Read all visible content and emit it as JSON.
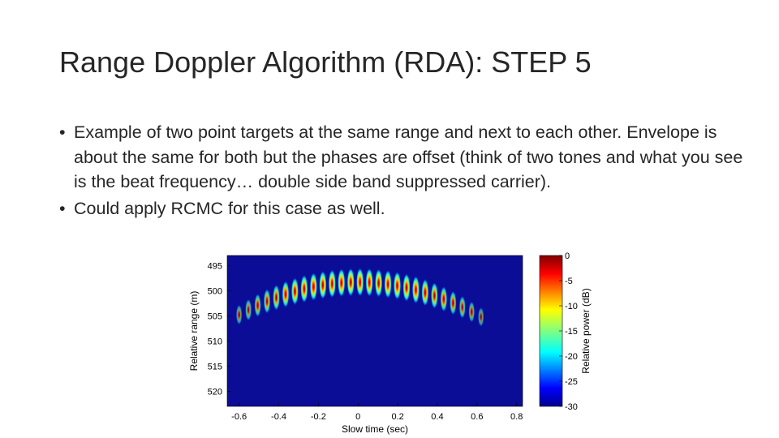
{
  "slide": {
    "title": "Range Doppler Algorithm (RDA): STEP 5",
    "bullets": [
      "Example of two point targets at the same range and next to each other. Envelope is about the same for both but the phases are offset (think of two tones and what you see is the beat frequency… double side band suppressed carrier).",
      "Could apply RCMC for this case as well."
    ]
  },
  "chart_data": {
    "type": "heatmap",
    "xlabel": "Slow time (sec)",
    "ylabel": "Relative range (m)",
    "x_ticks": [
      -0.6,
      -0.4,
      -0.2,
      0,
      0.2,
      0.4,
      0.6,
      0.8
    ],
    "y_ticks": [
      495,
      500,
      505,
      510,
      515,
      520
    ],
    "xlim": [
      -0.66,
      0.83
    ],
    "ylim": [
      493,
      523
    ],
    "colorbar": {
      "label": "Relative power (dB)",
      "ticks": [
        0,
        -5,
        -10,
        -15,
        -20,
        -25,
        -30
      ],
      "range": [
        -30,
        0
      ]
    },
    "colors": {
      "background": "#0b0d96"
    }
  }
}
